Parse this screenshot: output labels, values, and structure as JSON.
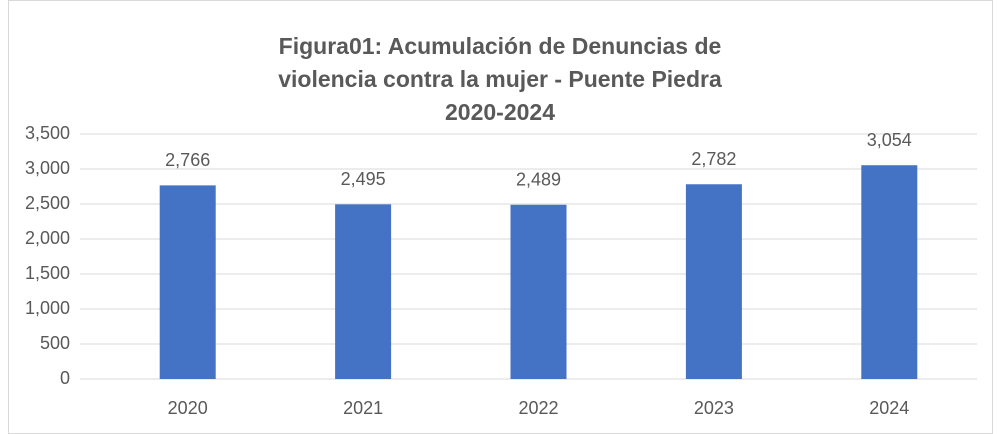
{
  "chart_data": {
    "type": "bar",
    "title": "Figura01: Acumulación de Denuncias de violencia contra la mujer - Puente Piedra 2020-2024",
    "categories": [
      "2020",
      "2021",
      "2022",
      "2023",
      "2024"
    ],
    "values": [
      2766,
      2495,
      2489,
      2782,
      3054
    ],
    "value_labels": [
      "2,766",
      "2,495",
      "2,489",
      "2,782",
      "3,054"
    ],
    "color": "#4472c4",
    "ylim": [
      0,
      3500
    ],
    "yticks": [
      0,
      {
        "value": 500,
        "label": "500"
      },
      {
        "value": 1000,
        "label": "1,000"
      },
      {
        "value": 1500,
        "label": "1,500"
      },
      {
        "value": 2000,
        "label": "2,000"
      },
      {
        "value": 2500,
        "label": "2,500"
      },
      {
        "value": 3000,
        "label": "3,000"
      },
      {
        "value": 3500,
        "label": "3,500"
      }
    ],
    "grid": true
  }
}
